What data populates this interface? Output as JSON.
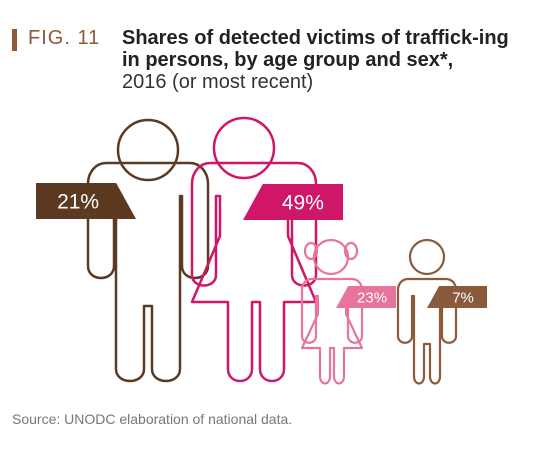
{
  "figure": {
    "label": "FIG. 11",
    "title": "Shares of detected victims of traffick-ing in persons, by age group and sex*,",
    "subtitle": "2016 (or most recent)",
    "source": "Source: UNODC elaboration of national data."
  },
  "colors": {
    "accent": "#8a5a3a",
    "men": "#5c3a22",
    "women": "#cf1668",
    "girls": "#e7749a",
    "boys": "#8a5a3a"
  },
  "chart_data": {
    "type": "pictograph",
    "title": "Shares of detected victims of trafficking in persons, by age group and sex*, 2016 (or most recent)",
    "categories": [
      "men",
      "women",
      "girls",
      "boys"
    ],
    "values": [
      21,
      49,
      23,
      7
    ],
    "labels": [
      "21%",
      "49%",
      "23%",
      "7%"
    ],
    "unit": "%"
  }
}
